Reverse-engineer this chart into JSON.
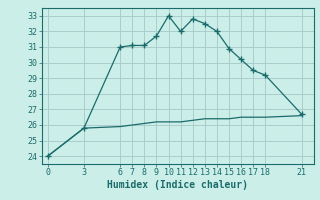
{
  "title": "",
  "xlabel": "Humidex (Indice chaleur)",
  "background_color": "#cceee8",
  "grid_color": "#aacccc",
  "line_color": "#1a6b6b",
  "hours": [
    0,
    3,
    6,
    7,
    8,
    9,
    10,
    11,
    12,
    13,
    14,
    15,
    16,
    17,
    18,
    21
  ],
  "humidex_high": [
    24.0,
    25.8,
    31.0,
    31.1,
    31.1,
    31.7,
    33.0,
    32.0,
    32.8,
    32.5,
    32.0,
    30.9,
    30.2,
    29.5,
    29.2,
    26.7
  ],
  "humidex_low": [
    24.0,
    25.8,
    25.9,
    26.0,
    26.1,
    26.2,
    26.2,
    26.2,
    26.3,
    26.4,
    26.4,
    26.4,
    26.5,
    26.5,
    26.5,
    26.6
  ],
  "ylim": [
    23.5,
    33.5
  ],
  "xlim": [
    -0.5,
    22.0
  ],
  "xticks": [
    0,
    3,
    6,
    7,
    8,
    9,
    10,
    11,
    12,
    13,
    14,
    15,
    16,
    17,
    18,
    21
  ],
  "yticks": [
    24,
    25,
    26,
    27,
    28,
    29,
    30,
    31,
    32,
    33
  ],
  "tick_fontsize": 6.0,
  "xlabel_fontsize": 7.0
}
